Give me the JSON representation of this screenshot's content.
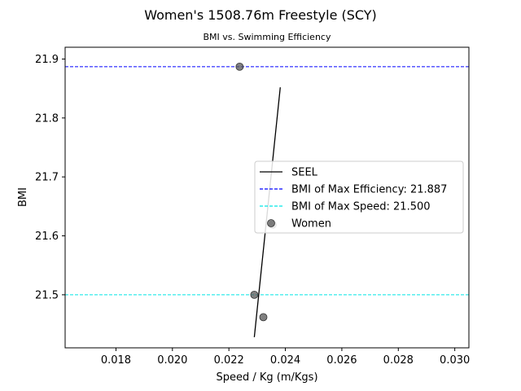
{
  "chart_data": {
    "type": "scatter",
    "title": "Women's 1508.76m Freestyle (SCY)",
    "subtitle": "BMI vs. Swimming Efficiency",
    "xlabel": "Speed / Kg (m/Kgs)",
    "ylabel": "BMI",
    "xlim": [
      0.0162,
      0.0305
    ],
    "ylim": [
      21.41,
      21.92
    ],
    "xticks": [
      0.018,
      0.02,
      0.022,
      0.024,
      0.026,
      0.028,
      0.03
    ],
    "xtick_labels": [
      "0.018",
      "0.020",
      "0.022",
      "0.024",
      "0.026",
      "0.028",
      "0.030"
    ],
    "yticks": [
      21.5,
      21.6,
      21.7,
      21.8,
      21.9
    ],
    "ytick_labels": [
      "21.5",
      "21.6",
      "21.7",
      "21.8",
      "21.9"
    ],
    "grid": false,
    "legend_position": "center-right",
    "series": [
      {
        "name": "Women",
        "kind": "scatter",
        "color": "#555555",
        "points": [
          {
            "x": 0.02238,
            "y": 21.887
          },
          {
            "x": 0.02355,
            "y": 21.619
          },
          {
            "x": 0.0229,
            "y": 21.5
          },
          {
            "x": 0.02322,
            "y": 21.462
          }
        ]
      },
      {
        "name": "SEEL",
        "kind": "line",
        "color": "#000000",
        "points": [
          {
            "x": 0.0229,
            "y": 21.428
          },
          {
            "x": 0.02382,
            "y": 21.852
          }
        ]
      }
    ],
    "reference_lines": [
      {
        "name": "BMI of Max Efficiency: 21.887",
        "y": 21.887,
        "color": "#0000ff",
        "style": "dashed"
      },
      {
        "name": "BMI of Max Speed: 21.500",
        "y": 21.5,
        "color": "#00e5e5",
        "style": "dashed"
      }
    ]
  }
}
